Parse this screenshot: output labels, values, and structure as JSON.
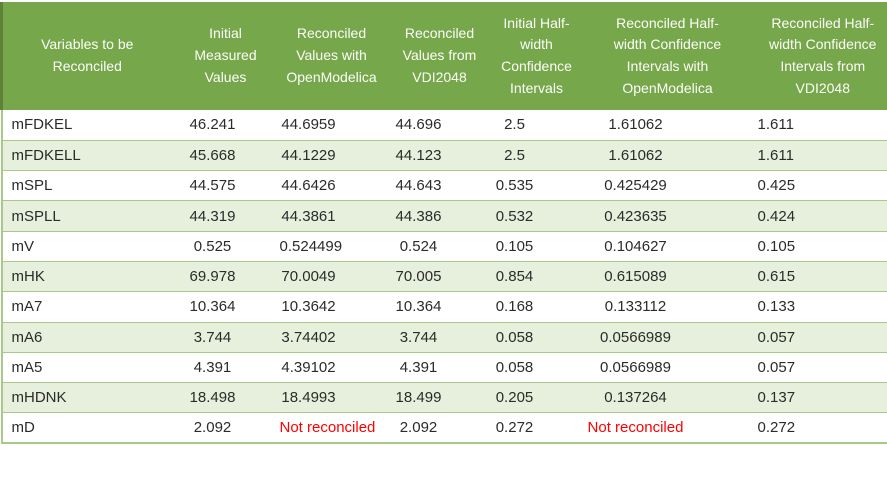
{
  "colors": {
    "header_bg": "#76A74B",
    "header_text": "#FDFDFA",
    "band_bg": "#E6F0DC",
    "band_border": "#A8C98A",
    "body_text": "#2B2B2B",
    "not_reconciled_text": "#FF0000"
  },
  "table": {
    "not_reconciled_label": "Not reconciled",
    "columns": [
      {
        "id": "variable",
        "label": "Variables to be Reconciled",
        "lines": [
          "Variables to be",
          "Reconciled"
        ]
      },
      {
        "id": "initial-measured-values",
        "label": "Initial Measured Values",
        "lines": [
          "Initial",
          "Measured",
          "Values"
        ]
      },
      {
        "id": "reconciled-values-openmodelica",
        "label": "Reconciled Values with OpenModelica",
        "lines": [
          "Reconciled",
          "Values with",
          "OpenModelica"
        ]
      },
      {
        "id": "reconciled-values-vdi2048",
        "label": "Reconciled Values from VDI2048",
        "lines": [
          "Reconciled",
          "Values from",
          "VDI2048"
        ]
      },
      {
        "id": "initial-halfwidth-ci",
        "label": "Initial Half-width Confidence Intervals",
        "lines": [
          "Initial Half-",
          "width",
          "Confidence",
          "Intervals"
        ]
      },
      {
        "id": "reconciled-halfwidth-ci-openmodelica",
        "label": "Reconciled Half-width Confidence Intervals with OpenModelica",
        "lines": [
          "Reconciled Half-",
          "width Confidence",
          "Intervals with",
          "OpenModelica"
        ]
      },
      {
        "id": "reconciled-halfwidth-ci-vdi2048",
        "label": "Reconciled Half-width Confidence Intervals from VDI2048",
        "lines": [
          "Reconciled Half-",
          "width Confidence",
          "Intervals from",
          "VDI2048"
        ]
      }
    ],
    "rows": [
      [
        "mFDKEL",
        "46.241",
        "44.6959",
        "44.696",
        "2.5",
        "1.61062",
        "1.611"
      ],
      [
        "mFDKELL",
        "45.668",
        "44.1229",
        "44.123",
        "2.5",
        "1.61062",
        "1.611"
      ],
      [
        "mSPL",
        "44.575",
        "44.6426",
        "44.643",
        "0.535",
        "0.425429",
        "0.425"
      ],
      [
        "mSPLL",
        "44.319",
        "44.3861",
        "44.386",
        "0.532",
        "0.423635",
        "0.424"
      ],
      [
        "mV",
        "0.525",
        "0.524499",
        "0.524",
        "0.105",
        "0.104627",
        "0.105"
      ],
      [
        "mHK",
        "69.978",
        "70.0049",
        "70.005",
        "0.854",
        "0.615089",
        "0.615"
      ],
      [
        "mA7",
        "10.364",
        "10.3642",
        "10.364",
        "0.168",
        "0.133112",
        "0.133"
      ],
      [
        "mA6",
        "3.744",
        "3.74402",
        "3.744",
        "0.058",
        "0.0566989",
        "0.057"
      ],
      [
        "mA5",
        "4.391",
        "4.39102",
        "4.391",
        "0.058",
        "0.0566989",
        "0.057"
      ],
      [
        "mHDNK",
        "18.498",
        "18.4993",
        "18.499",
        "0.205",
        "0.137264",
        "0.137"
      ],
      [
        "mD",
        "2.092",
        "Not reconciled",
        "2.092",
        "0.272",
        "Not reconciled",
        "0.272"
      ]
    ]
  },
  "chart_data": {
    "type": "table",
    "columns": [
      "Variables to be Reconciled",
      "Initial Measured Values",
      "Reconciled Values with OpenModelica",
      "Reconciled Values from VDI2048",
      "Initial Half-width Confidence Intervals",
      "Reconciled Half-width Confidence Intervals with OpenModelica",
      "Reconciled Half-width Confidence Intervals from VDI2048"
    ],
    "rows": [
      {
        "variable": "mFDKEL",
        "initial_measured": 46.241,
        "reconciled_openmodelica": 44.6959,
        "reconciled_vdi2048": 44.696,
        "initial_halfwidth_ci": 2.5,
        "reconciled_halfwidth_ci_openmodelica": 1.61062,
        "reconciled_halfwidth_ci_vdi2048": 1.611
      },
      {
        "variable": "mFDKELL",
        "initial_measured": 45.668,
        "reconciled_openmodelica": 44.1229,
        "reconciled_vdi2048": 44.123,
        "initial_halfwidth_ci": 2.5,
        "reconciled_halfwidth_ci_openmodelica": 1.61062,
        "reconciled_halfwidth_ci_vdi2048": 1.611
      },
      {
        "variable": "mSPL",
        "initial_measured": 44.575,
        "reconciled_openmodelica": 44.6426,
        "reconciled_vdi2048": 44.643,
        "initial_halfwidth_ci": 0.535,
        "reconciled_halfwidth_ci_openmodelica": 0.425429,
        "reconciled_halfwidth_ci_vdi2048": 0.425
      },
      {
        "variable": "mSPLL",
        "initial_measured": 44.319,
        "reconciled_openmodelica": 44.3861,
        "reconciled_vdi2048": 44.386,
        "initial_halfwidth_ci": 0.532,
        "reconciled_halfwidth_ci_openmodelica": 0.423635,
        "reconciled_halfwidth_ci_vdi2048": 0.424
      },
      {
        "variable": "mV",
        "initial_measured": 0.525,
        "reconciled_openmodelica": 0.524499,
        "reconciled_vdi2048": 0.524,
        "initial_halfwidth_ci": 0.105,
        "reconciled_halfwidth_ci_openmodelica": 0.104627,
        "reconciled_halfwidth_ci_vdi2048": 0.105
      },
      {
        "variable": "mHK",
        "initial_measured": 69.978,
        "reconciled_openmodelica": 70.0049,
        "reconciled_vdi2048": 70.005,
        "initial_halfwidth_ci": 0.854,
        "reconciled_halfwidth_ci_openmodelica": 0.615089,
        "reconciled_halfwidth_ci_vdi2048": 0.615
      },
      {
        "variable": "mA7",
        "initial_measured": 10.364,
        "reconciled_openmodelica": 10.3642,
        "reconciled_vdi2048": 10.364,
        "initial_halfwidth_ci": 0.168,
        "reconciled_halfwidth_ci_openmodelica": 0.133112,
        "reconciled_halfwidth_ci_vdi2048": 0.133
      },
      {
        "variable": "mA6",
        "initial_measured": 3.744,
        "reconciled_openmodelica": 3.74402,
        "reconciled_vdi2048": 3.744,
        "initial_halfwidth_ci": 0.058,
        "reconciled_halfwidth_ci_openmodelica": 0.0566989,
        "reconciled_halfwidth_ci_vdi2048": 0.057
      },
      {
        "variable": "mA5",
        "initial_measured": 4.391,
        "reconciled_openmodelica": 4.39102,
        "reconciled_vdi2048": 4.391,
        "initial_halfwidth_ci": 0.058,
        "reconciled_halfwidth_ci_openmodelica": 0.0566989,
        "reconciled_halfwidth_ci_vdi2048": 0.057
      },
      {
        "variable": "mHDNK",
        "initial_measured": 18.498,
        "reconciled_openmodelica": 18.4993,
        "reconciled_vdi2048": 18.499,
        "initial_halfwidth_ci": 0.205,
        "reconciled_halfwidth_ci_openmodelica": 0.137264,
        "reconciled_halfwidth_ci_vdi2048": 0.137
      },
      {
        "variable": "mD",
        "initial_measured": 2.092,
        "reconciled_openmodelica": "Not reconciled",
        "reconciled_vdi2048": 2.092,
        "initial_halfwidth_ci": 0.272,
        "reconciled_halfwidth_ci_openmodelica": "Not reconciled",
        "reconciled_halfwidth_ci_vdi2048": 0.272
      }
    ]
  }
}
